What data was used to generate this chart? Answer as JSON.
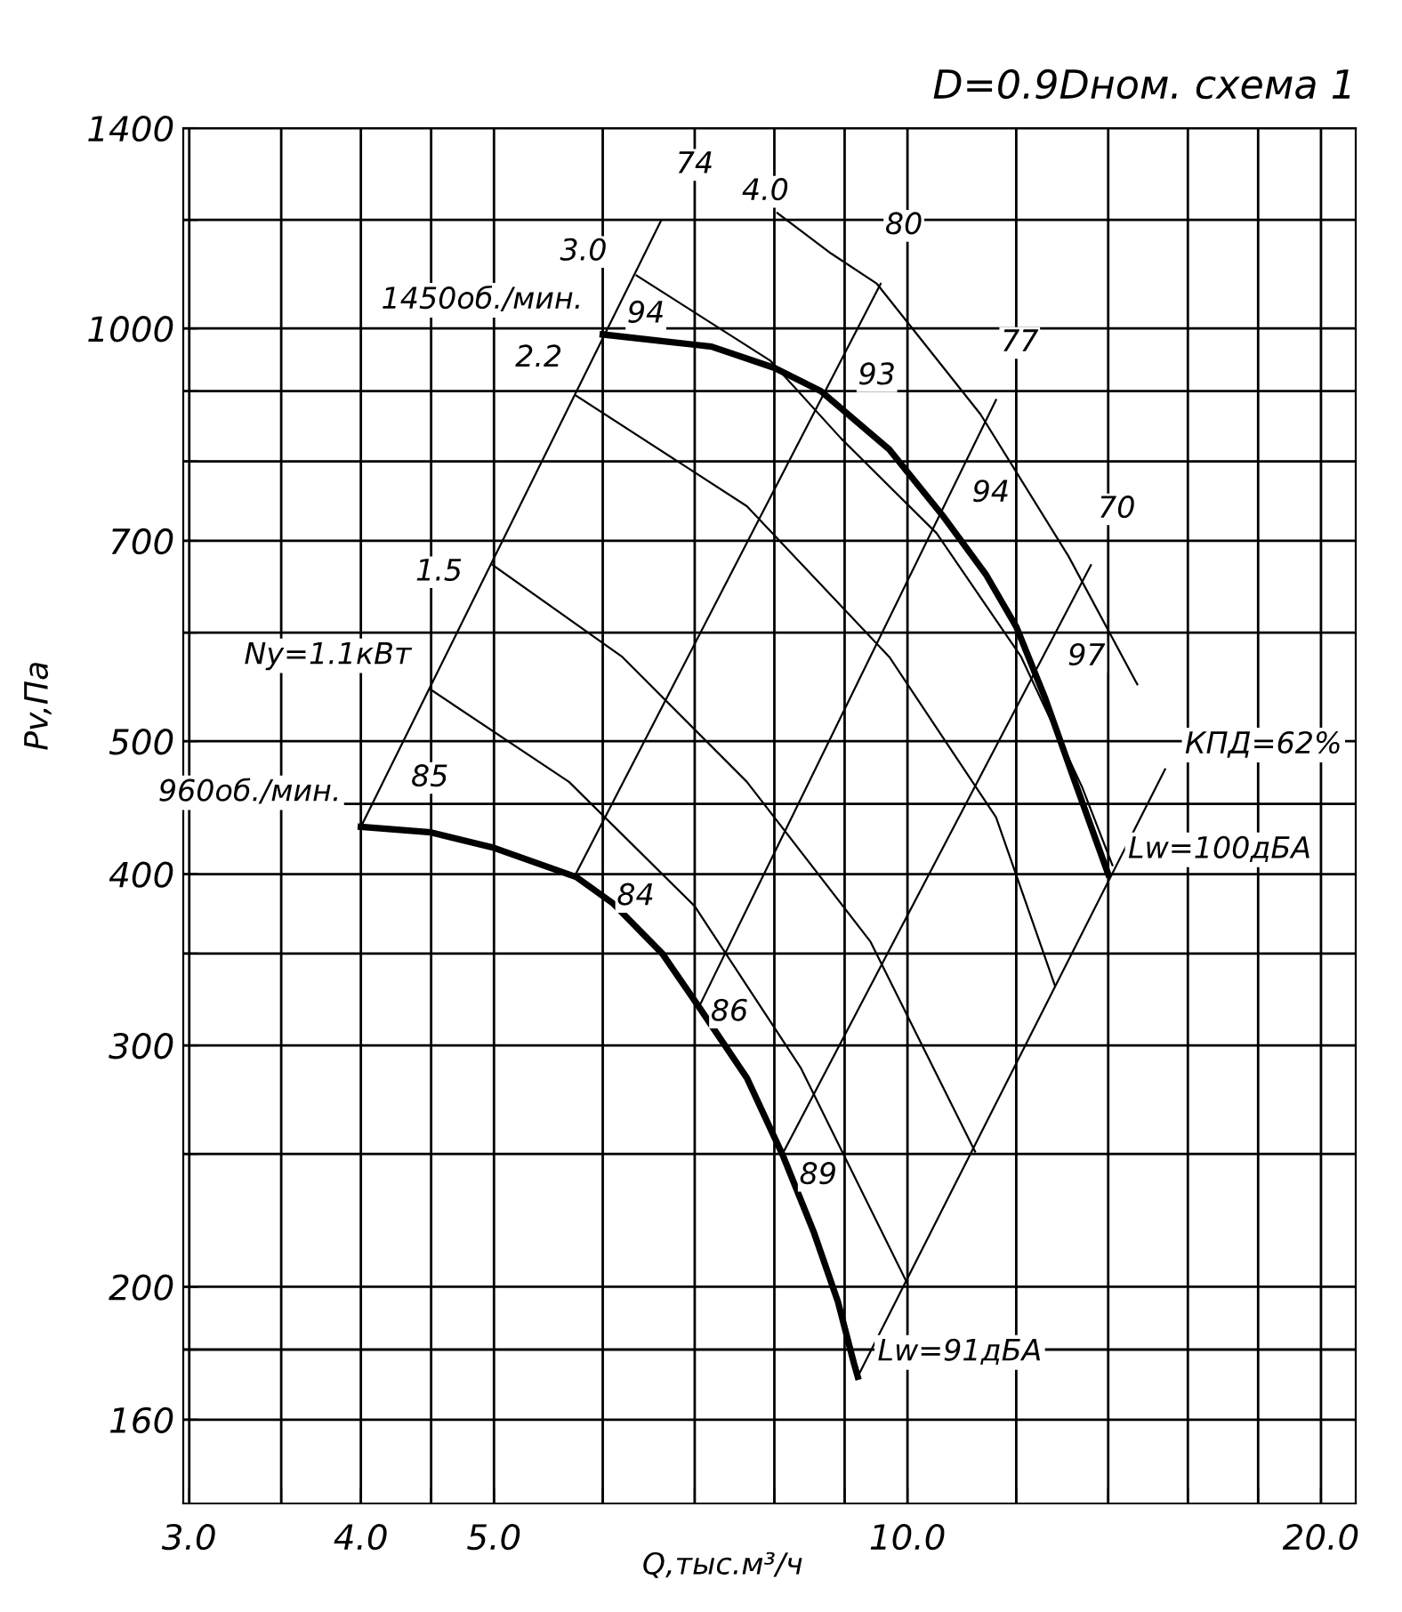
{
  "chart_data": {
    "type": "line",
    "title": "D=0.9Dном. схема 1",
    "xlabel": "Q,тыс.м³/ч",
    "ylabel": "Pv,Па",
    "log": "xy",
    "grid": true,
    "marker": "none",
    "line_style": "solid",
    "xlim": [
      2.97,
      21.2
    ],
    "ylim": [
      139,
      1400
    ],
    "xticks": [
      {
        "value": 3,
        "label": "3.0"
      },
      {
        "value": 3.5,
        "label": null
      },
      {
        "value": 4,
        "label": "4.0"
      },
      {
        "value": 4.5,
        "label": null
      },
      {
        "value": 5,
        "label": "5.0"
      },
      {
        "value": 6,
        "label": null
      },
      {
        "value": 7,
        "label": null
      },
      {
        "value": 8,
        "label": null
      },
      {
        "value": 9,
        "label": null
      },
      {
        "value": 10,
        "label": "10.0"
      },
      {
        "value": 12,
        "label": null
      },
      {
        "value": 14,
        "label": null
      },
      {
        "value": 16,
        "label": null
      },
      {
        "value": 18,
        "label": null
      },
      {
        "value": 20,
        "label": "20.0"
      }
    ],
    "yticks": [
      160,
      {
        "value": 180,
        "label": null
      },
      200,
      {
        "value": 250,
        "label": null
      },
      300,
      {
        "value": 350,
        "label": null
      },
      400,
      {
        "value": 450,
        "label": null
      },
      500,
      {
        "value": 600,
        "label": null
      },
      700,
      {
        "value": 800,
        "label": null
      },
      {
        "value": 900,
        "label": null
      },
      1000,
      {
        "value": 1200,
        "label": null
      },
      1400
    ],
    "series": [
      {
        "color": "#000000",
        "x": [
          6.0,
          7.0,
          7.2,
          8.0,
          8.65,
          9.7,
          10.6,
          11.4,
          12.0,
          12.6,
          13.2,
          14.0
        ],
        "values": [
          990,
          973,
          970,
          936,
          900,
          816,
          731,
          662,
          606,
          537,
          471,
          400
        ]
      },
      {
        "color": "#000000",
        "x": [
          4.0,
          4.5,
          5.0,
          5.74,
          6.1,
          6.63,
          7.05,
          7.64,
          8.12,
          8.55,
          8.9,
          9.14,
          9.2
        ],
        "values": [
          433,
          429,
          418,
          398,
          381,
          350,
          320,
          284,
          249,
          219,
          195,
          176,
          172
        ]
      },
      {
        "color": "#000000",
        "x": [
          8.04,
          8.8,
          9.5,
          11.3,
          13.1,
          14.7
        ],
        "values": [
          1214,
          1134,
          1078,
          866,
          682,
          550
        ]
      },
      {
        "color": "#000000",
        "x": [
          6.35,
          7.95,
          8.95,
          10.5,
          12.1,
          13.4,
          14.1
        ],
        "values": [
          1093,
          947,
          831,
          709,
          576,
          463,
          406
        ]
      },
      {
        "color": "#000000",
        "x": [
          5.74,
          7.64,
          9.7,
          11.6,
          12.8
        ],
        "values": [
          893,
          742,
          576,
          440,
          332
        ]
      },
      {
        "color": "#000000",
        "x": [
          4.99,
          6.2,
          7.64,
          9.4,
          11.2
        ],
        "values": [
          672,
          576,
          467,
          357,
          251
        ]
      },
      {
        "color": "#000000",
        "x": [
          4.5,
          5.67,
          7.0,
          8.36,
          10.0
        ],
        "values": [
          545,
          467,
          379,
          289,
          201
        ]
      },
      {
        "color": "#000000",
        "x": [
          4.0,
          6.62
        ],
        "values": [
          433,
          1200
        ]
      },
      {
        "color": "#000000",
        "x": [
          5.72,
          9.56
        ],
        "values": [
          398,
          1078
        ]
      },
      {
        "color": "#000000",
        "x": [
          7.05,
          11.6
        ],
        "values": [
          320,
          887
        ]
      },
      {
        "color": "#000000",
        "x": [
          8.11,
          13.6
        ],
        "values": [
          250,
          672
        ]
      },
      {
        "color": "#000000",
        "x": [
          9.2,
          15.4
        ],
        "values": [
          172,
          477
        ]
      }
    ],
    "annotations": [
      {
        "text": "3.0",
        "x": 5.81,
        "y": 1137
      },
      {
        "text": "1450об./мин.",
        "x": 6.0,
        "y": 990
      },
      {
        "text": "94",
        "x": 6.45,
        "y": 1024
      },
      {
        "text": "2.2",
        "x": 5.39,
        "y": 951
      },
      {
        "text": "1.5",
        "x": 4.56,
        "y": 664
      },
      {
        "text": "Ny=1.1кВт",
        "x": 4.5,
        "y": 545
      },
      {
        "text": "85",
        "x": 4.49,
        "y": 470
      },
      {
        "text": "960об./мин.",
        "x": 4.0,
        "y": 433
      },
      {
        "text": "84",
        "x": 6.34,
        "y": 385
      },
      {
        "text": "86",
        "x": 7.42,
        "y": 317
      },
      {
        "text": "89",
        "x": 8.61,
        "y": 241
      },
      {
        "text": "Lw=91дБА",
        "x": 9.2,
        "y": 172
      },
      {
        "text": "Lw=100дБА",
        "x": 14.0,
        "y": 400
      },
      {
        "text": "74",
        "x": 7.0,
        "y": 1316
      },
      {
        "text": "4.0",
        "x": 7.88,
        "y": 1258
      },
      {
        "text": "80",
        "x": 9.94,
        "y": 1188
      },
      {
        "text": "93",
        "x": 9.5,
        "y": 923
      },
      {
        "text": "77",
        "x": 12.07,
        "y": 976
      },
      {
        "text": "94",
        "x": 11.5,
        "y": 758
      },
      {
        "text": "70",
        "x": 14.2,
        "y": 738
      },
      {
        "text": "97",
        "x": 13.5,
        "y": 576
      },
      {
        "text": "КПД=62%",
        "x": 15.4,
        "y": 477
      }
    ]
  }
}
